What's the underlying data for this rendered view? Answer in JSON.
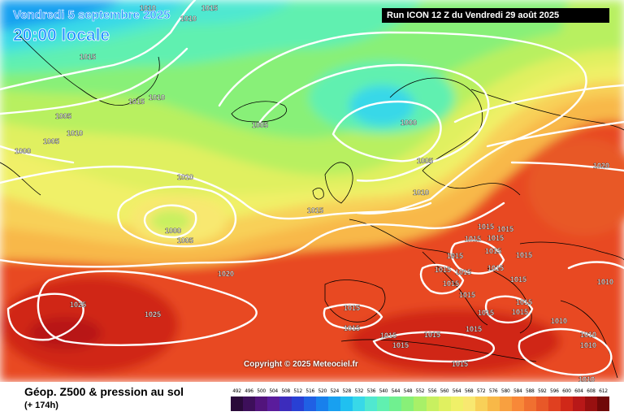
{
  "header": {
    "valid_date": "Vendredi 5 septembre 2025",
    "local_time": "20:00 locale",
    "run_info": "Run ICON 12 Z du Vendredi 29 août 2025"
  },
  "footer": {
    "product_title": "Géop. Z500 & pression au sol",
    "lead_time": "(+ 174h)",
    "copyright": "Copyright © 2025 Meteociel.fr"
  },
  "legend": {
    "values": [
      "492",
      "496",
      "500",
      "504",
      "508",
      "512",
      "516",
      "520",
      "524",
      "528",
      "532",
      "536",
      "540",
      "544",
      "548",
      "552",
      "556",
      "560",
      "564",
      "568",
      "572",
      "576",
      "580",
      "584",
      "588",
      "592",
      "596",
      "600",
      "604",
      "608",
      "612"
    ],
    "colors": [
      "#2a0a3a",
      "#3d0f5a",
      "#52147c",
      "#5a1c9c",
      "#3c2cbc",
      "#2840d4",
      "#2060e4",
      "#1880ec",
      "#18a0f0",
      "#20c0f0",
      "#38d8e8",
      "#50e8d0",
      "#60f0b0",
      "#70f090",
      "#88f078",
      "#a8f068",
      "#c8f060",
      "#e0f060",
      "#f0f068",
      "#f8e870",
      "#f8d058",
      "#f8b848",
      "#f8a040",
      "#f88838",
      "#f07030",
      "#e85828",
      "#e04020",
      "#d02818",
      "#b81818",
      "#981010",
      "#700808"
    ]
  },
  "isobar_labels": [
    {
      "text": "1010"
    },
    {
      "text": "1010"
    },
    {
      "text": "1015"
    },
    {
      "text": "1015"
    },
    {
      "text": "1015"
    },
    {
      "text": "1010"
    },
    {
      "text": "1005"
    },
    {
      "text": "1010"
    },
    {
      "text": "1005"
    },
    {
      "text": "1000"
    },
    {
      "text": "1005"
    },
    {
      "text": "1000"
    },
    {
      "text": "1005"
    },
    {
      "text": "1010"
    },
    {
      "text": "1000"
    },
    {
      "text": "1005"
    },
    {
      "text": "1010"
    },
    {
      "text": "1015"
    },
    {
      "text": "1020"
    },
    {
      "text": "1025"
    },
    {
      "text": "1025"
    },
    {
      "text": "1020"
    },
    {
      "text": "1015"
    },
    {
      "text": "1015"
    },
    {
      "text": "1015"
    },
    {
      "text": "1015"
    },
    {
      "text": "1015"
    },
    {
      "text": "1015"
    },
    {
      "text": "1015"
    },
    {
      "text": "1015"
    },
    {
      "text": "1015"
    },
    {
      "text": "1015"
    },
    {
      "text": "1015"
    },
    {
      "text": "1015"
    },
    {
      "text": "1015"
    },
    {
      "text": "1015"
    },
    {
      "text": "1015"
    },
    {
      "text": "1015"
    },
    {
      "text": "1010"
    },
    {
      "text": "1010"
    },
    {
      "text": "1010"
    },
    {
      "text": "1010"
    },
    {
      "text": "1010"
    },
    {
      "text": "1015"
    },
    {
      "text": "1015"
    },
    {
      "text": "1015"
    },
    {
      "text": "1015"
    },
    {
      "text": "1015"
    },
    {
      "text": "1015"
    },
    {
      "text": "1015"
    }
  ]
}
